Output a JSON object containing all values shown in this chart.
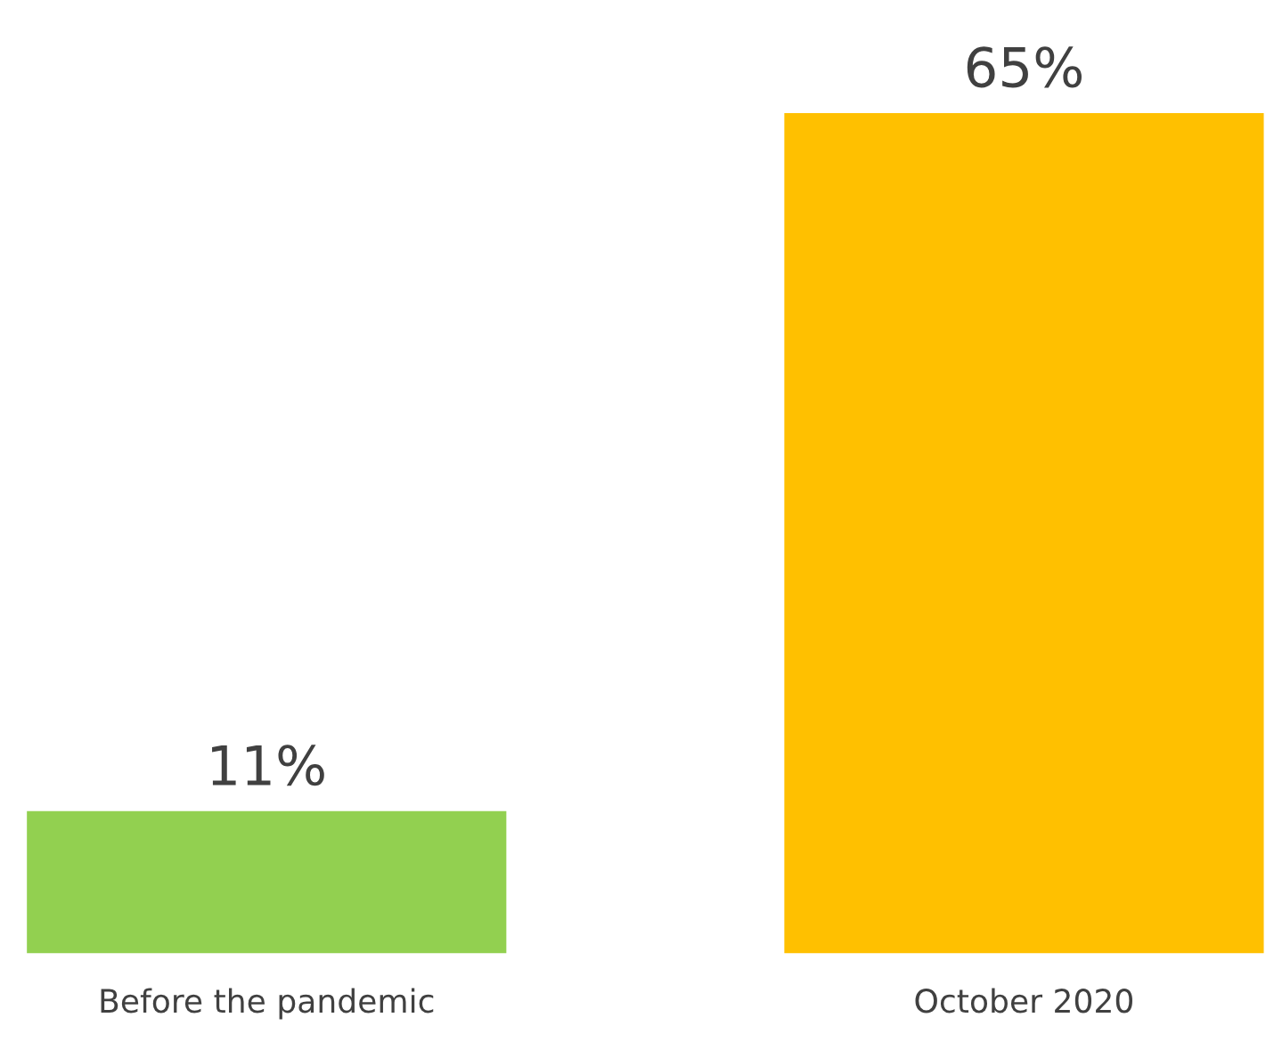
{
  "chart_data": {
    "type": "bar",
    "categories": [
      "Before the pandemic",
      "October 2020"
    ],
    "values": [
      11,
      65
    ],
    "colors": [
      "#92d050",
      "#ffc000"
    ],
    "value_labels": [
      "11%",
      "65%"
    ],
    "grid": false,
    "legend": false
  }
}
